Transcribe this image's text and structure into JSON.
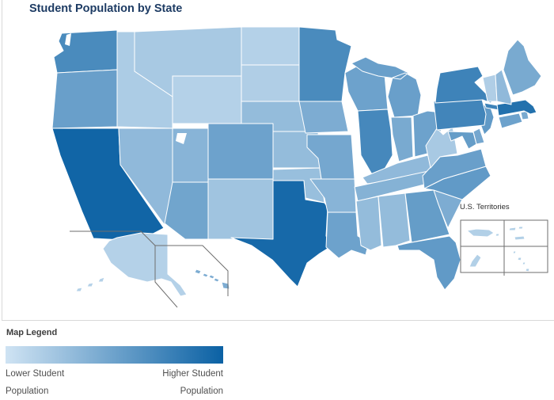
{
  "title": "Student Population by State",
  "legend": {
    "heading": "Map Legend",
    "low_label": "Lower Student Population",
    "high_label": "Higher Student Population",
    "gradient_start": "#cfe3f3",
    "gradient_end": "#0b61a4"
  },
  "territories_box": {
    "label": "U.S. Territories"
  },
  "chart_data": {
    "type": "heatmap",
    "subtype": "us-choropleth-map",
    "title": "Student Population by State",
    "legend_low_label": "Lower Student Population",
    "legend_high_label": "Higher Student Population",
    "palette": {
      "low": "#cfe3f3",
      "high": "#0b61a4"
    },
    "value_scale": "relative shading intensity 0 (lightest) to 1 (darkest), read from map colors",
    "states": [
      {
        "id": "WA",
        "intensity": 0.68
      },
      {
        "id": "OR",
        "intensity": 0.52
      },
      {
        "id": "CA",
        "intensity": 0.97
      },
      {
        "id": "ID",
        "intensity": 0.18
      },
      {
        "id": "NV",
        "intensity": 0.32
      },
      {
        "id": "MT",
        "intensity": 0.2
      },
      {
        "id": "WY",
        "intensity": 0.14
      },
      {
        "id": "UT",
        "intensity": 0.36
      },
      {
        "id": "CO",
        "intensity": 0.5
      },
      {
        "id": "AZ",
        "intensity": 0.48
      },
      {
        "id": "NM",
        "intensity": 0.24
      },
      {
        "id": "ND",
        "intensity": 0.14
      },
      {
        "id": "SD",
        "intensity": 0.16
      },
      {
        "id": "NE",
        "intensity": 0.3
      },
      {
        "id": "KS",
        "intensity": 0.3
      },
      {
        "id": "OK",
        "intensity": 0.28
      },
      {
        "id": "TX",
        "intensity": 0.94
      },
      {
        "id": "MN",
        "intensity": 0.68
      },
      {
        "id": "IA",
        "intensity": 0.42
      },
      {
        "id": "MO",
        "intensity": 0.46
      },
      {
        "id": "AR",
        "intensity": 0.36
      },
      {
        "id": "LA",
        "intensity": 0.5
      },
      {
        "id": "WI",
        "intensity": 0.5
      },
      {
        "id": "IL",
        "intensity": 0.7
      },
      {
        "id": "MI",
        "intensity": 0.52
      },
      {
        "id": "IN",
        "intensity": 0.44
      },
      {
        "id": "OH",
        "intensity": 0.5
      },
      {
        "id": "KY",
        "intensity": 0.32
      },
      {
        "id": "TN",
        "intensity": 0.38
      },
      {
        "id": "MS",
        "intensity": 0.3
      },
      {
        "id": "AL",
        "intensity": 0.3
      },
      {
        "id": "GA",
        "intensity": 0.54
      },
      {
        "id": "FL",
        "intensity": 0.56
      },
      {
        "id": "SC",
        "intensity": 0.42
      },
      {
        "id": "NC",
        "intensity": 0.56
      },
      {
        "id": "VA",
        "intensity": 0.52
      },
      {
        "id": "WV",
        "intensity": 0.2
      },
      {
        "id": "MD",
        "intensity": 0.54
      },
      {
        "id": "DE",
        "intensity": 0.46
      },
      {
        "id": "NJ",
        "intensity": 0.56
      },
      {
        "id": "PA",
        "intensity": 0.72
      },
      {
        "id": "NY",
        "intensity": 0.74
      },
      {
        "id": "CT",
        "intensity": 0.5
      },
      {
        "id": "RI",
        "intensity": 0.44
      },
      {
        "id": "MA",
        "intensity": 0.88
      },
      {
        "id": "VT",
        "intensity": 0.16
      },
      {
        "id": "NH",
        "intensity": 0.32
      },
      {
        "id": "ME",
        "intensity": 0.44
      },
      {
        "id": "AK",
        "intensity": 0.14
      },
      {
        "id": "HI",
        "intensity": 0.42
      }
    ],
    "territories": [
      {
        "id": "PR",
        "intensity": 0.15
      },
      {
        "id": "VI",
        "intensity": 0.15
      },
      {
        "id": "GU",
        "intensity": 0.15
      },
      {
        "id": "AS",
        "intensity": 0.15
      }
    ]
  }
}
